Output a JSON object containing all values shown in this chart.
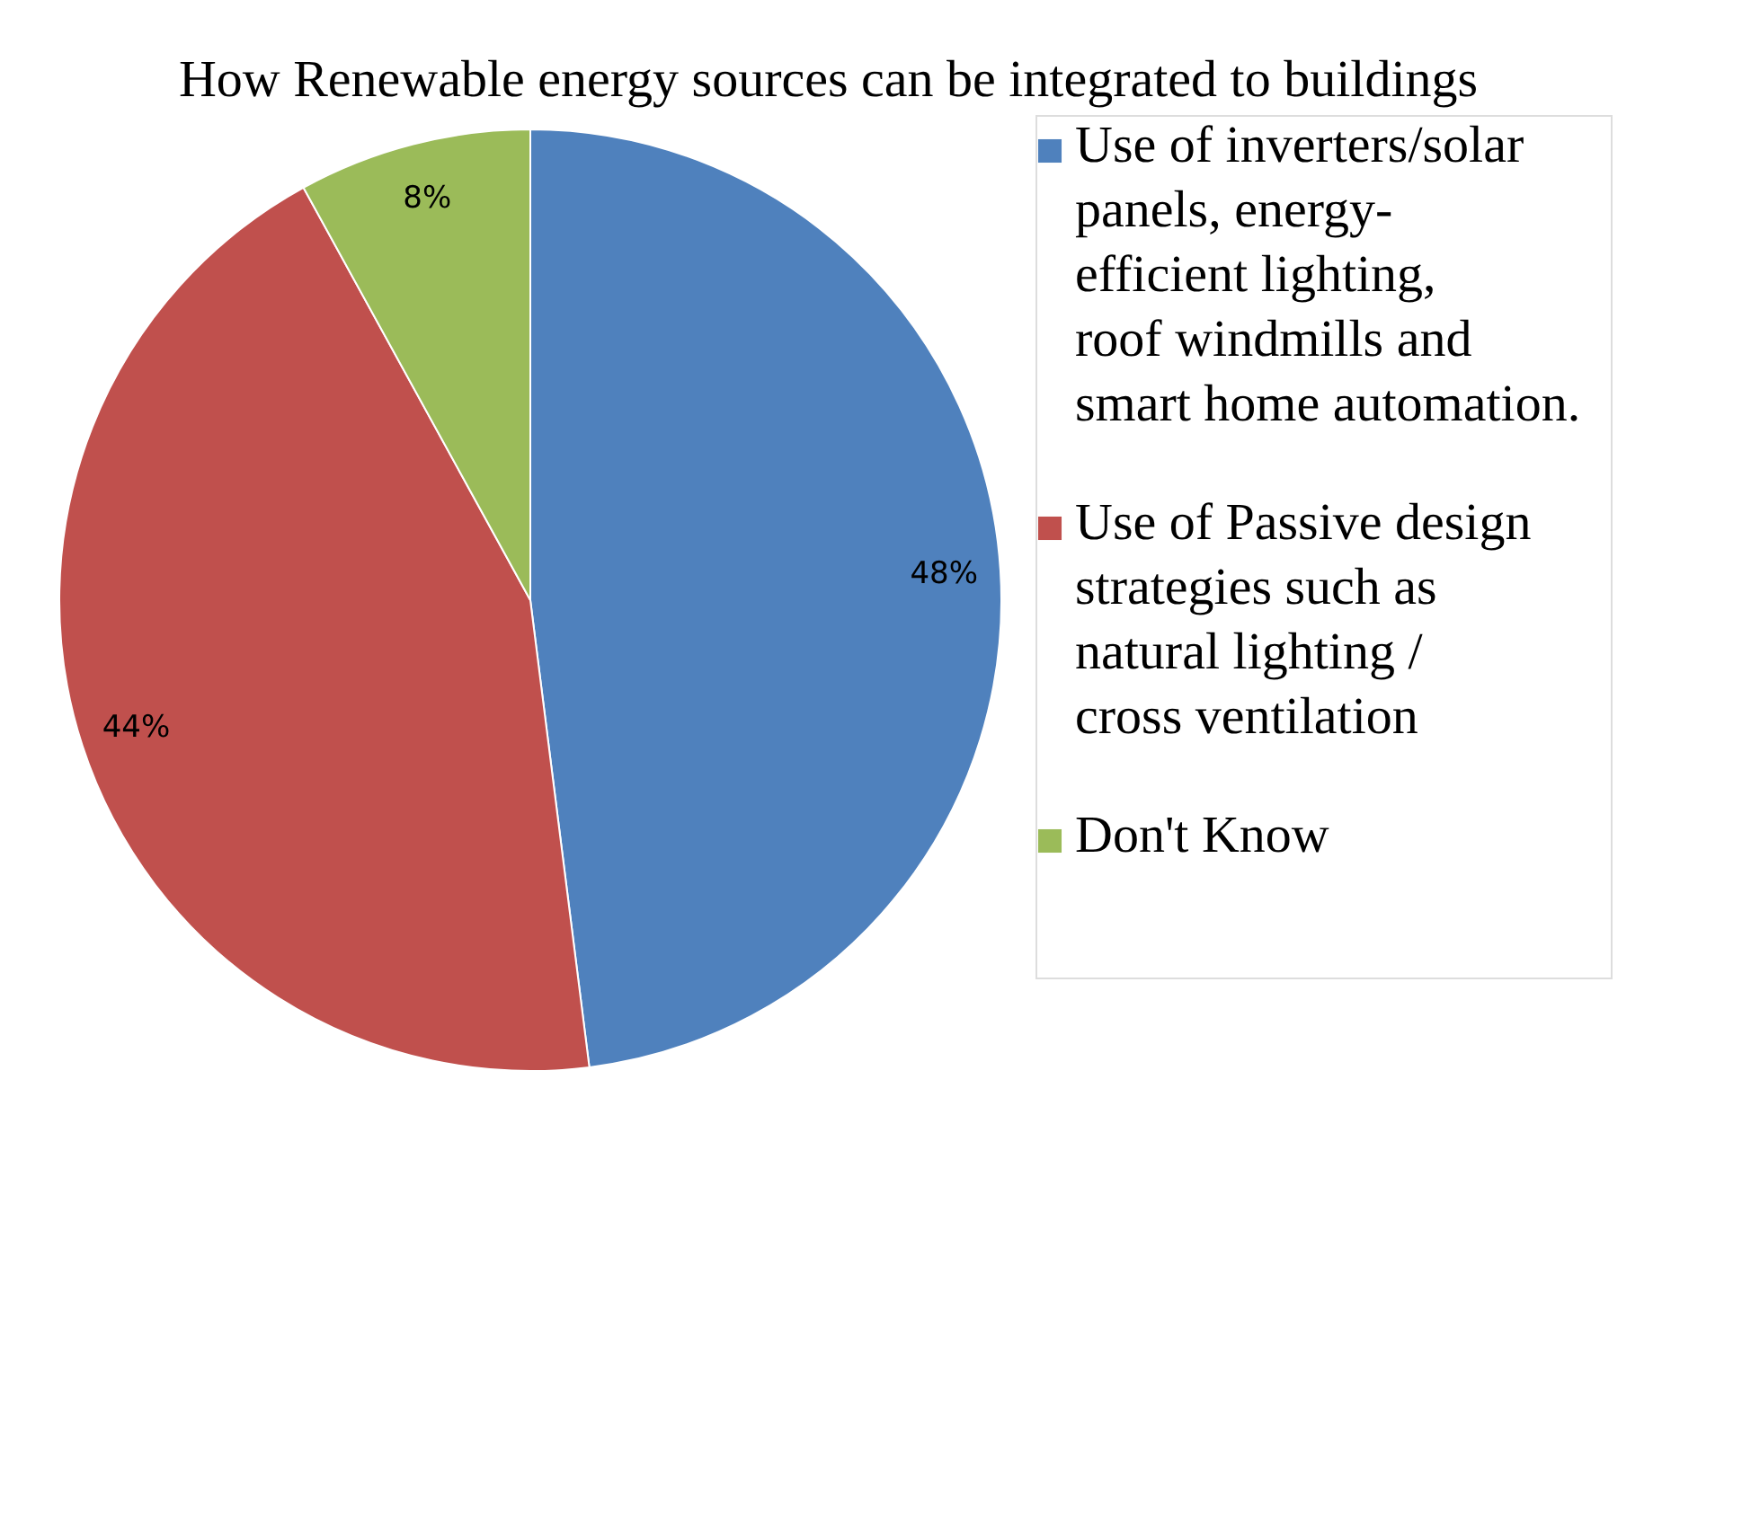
{
  "chart_data": {
    "type": "pie",
    "title": "How Renewable energy sources can be integrated to buildings",
    "categories": [
      "Use of inverters/solar panels, energy-efficient lighting, roof windmills and smart home automation.",
      "Use of Passive design strategies such as natural lighting / cross ventilation",
      "Don't Know"
    ],
    "values": [
      48,
      44,
      8
    ],
    "colors": [
      "#4f81bd",
      "#c0504d",
      "#9bbb59"
    ],
    "value_labels": [
      "48%",
      "44%",
      "8%"
    ],
    "legend": "right"
  }
}
